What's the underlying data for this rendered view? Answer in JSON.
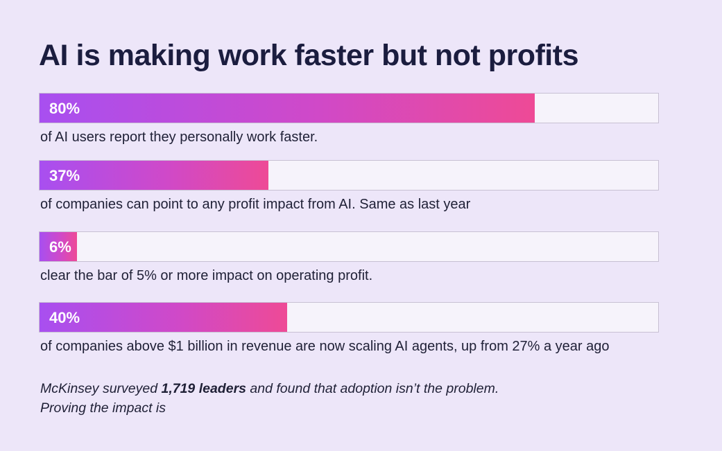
{
  "title": "AI is making work faster but not profits",
  "chart_data": {
    "type": "bar",
    "orientation": "horizontal",
    "xlim": [
      0,
      100
    ],
    "categories": [
      "of AI users report they personally work faster.",
      "of companies can point to any profit impact from AI. Same as last year",
      "clear the bar of 5% or more impact on operating profit.",
      "of companies above $1 billion in revenue are now scaling AI agents, up from 27% a year ago"
    ],
    "values": [
      80,
      37,
      6,
      40
    ],
    "value_labels": [
      "80%",
      "37%",
      "6%",
      "40%"
    ],
    "colors": {
      "gradient_start": "#a84ff0",
      "gradient_end": "#ee4a96",
      "track": "#f6f3fb",
      "background": "#ede6f9"
    }
  },
  "footnote": {
    "text_before": "McKinsey surveyed ",
    "emphasis": "1,719 leaders",
    "text_after": " and found that adoption isn’t the problem.",
    "line2": "Proving the impact is"
  }
}
